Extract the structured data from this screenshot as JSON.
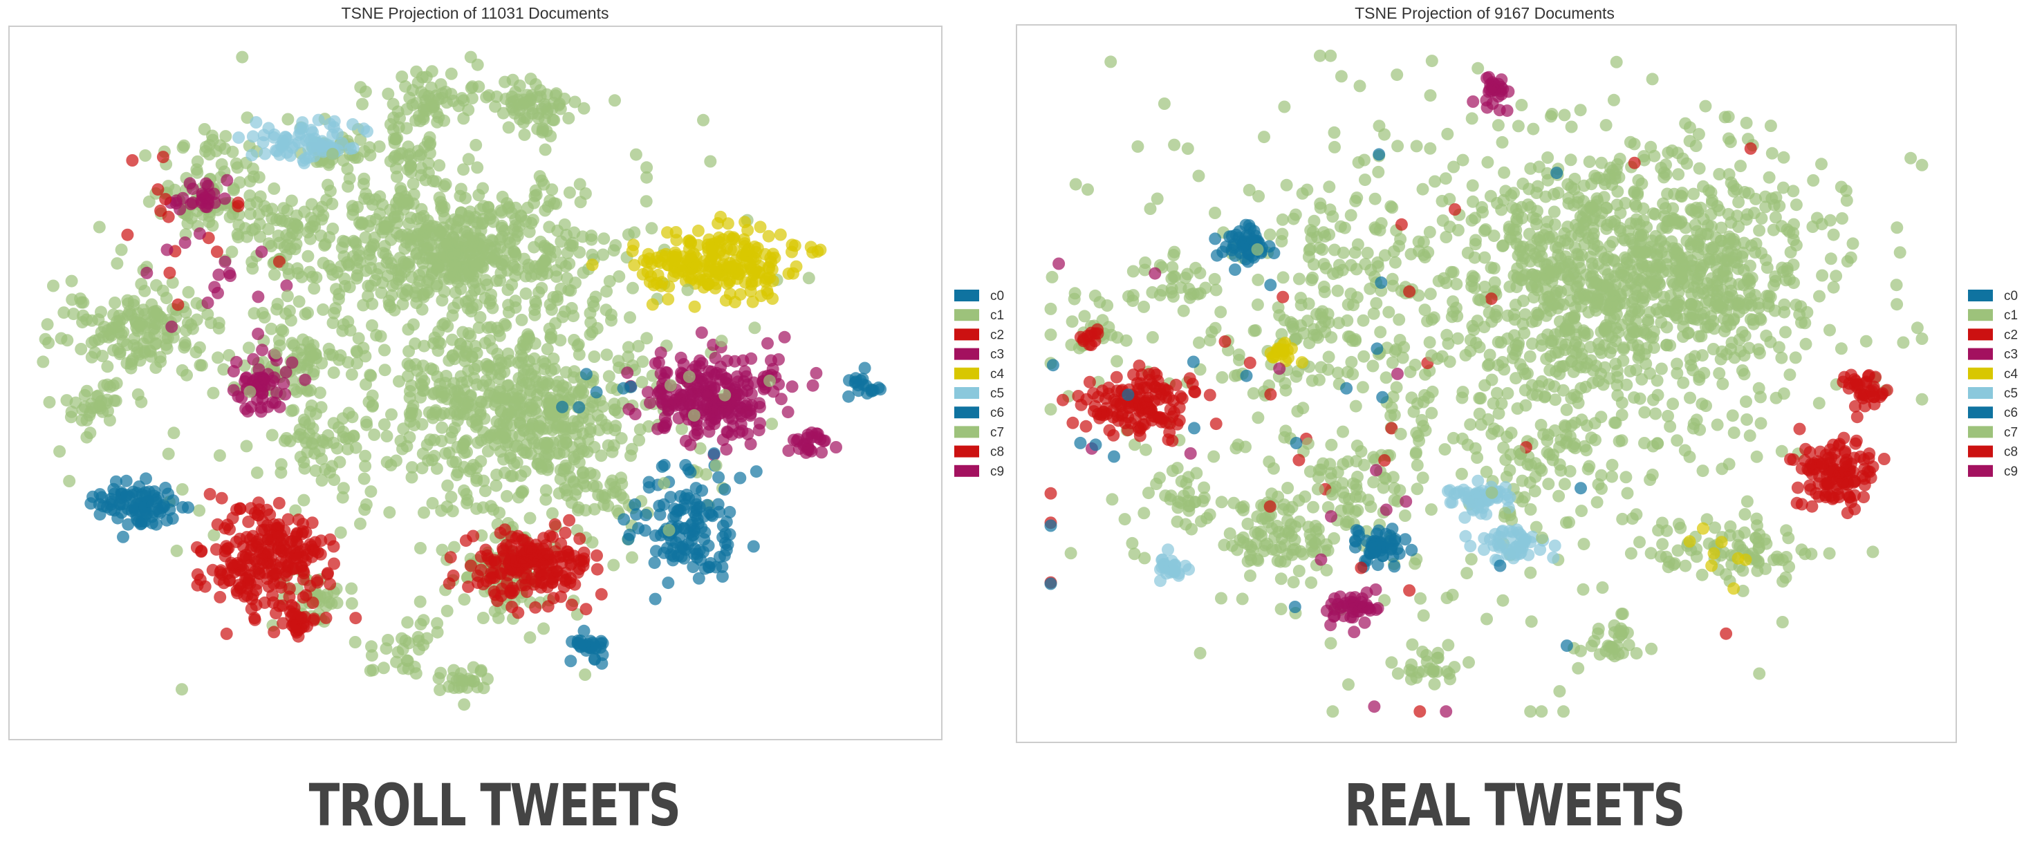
{
  "colors": {
    "c0": "#0f73a0",
    "c1": "#9dc27b",
    "c2": "#cc1111",
    "c3": "#a3115f",
    "c4": "#d8c700",
    "c5": "#8ac8dc",
    "c6": "#0f73a0",
    "c7": "#9dc27b",
    "c8": "#cc1111",
    "c9": "#a3115f",
    "frame": "#cccccc",
    "caption": "#444444"
  },
  "captions": {
    "left": "TROLL TWEETS",
    "right": "REAL TWEETS"
  },
  "chart_data": [
    {
      "type": "scatter",
      "title": "TSNE Projection of 11031 Documents",
      "xlabel": "",
      "ylabel": "",
      "grid": false,
      "axes_visible": false,
      "legend": {
        "placement": "outside-right",
        "entries": [
          "c0",
          "c1",
          "c2",
          "c3",
          "c4",
          "c5",
          "c6",
          "c7",
          "c8",
          "c9"
        ]
      },
      "clusters": [
        {
          "series": "c1",
          "x": 0.47,
          "y": 0.7,
          "sx": 0.085,
          "sy": 0.05,
          "n": 520
        },
        {
          "series": "c1",
          "x": 0.55,
          "y": 0.46,
          "sx": 0.065,
          "sy": 0.06,
          "n": 420
        },
        {
          "series": "c1",
          "x": 0.45,
          "y": 0.55,
          "sx": 0.16,
          "sy": 0.16,
          "n": 380
        },
        {
          "series": "c1",
          "x": 0.12,
          "y": 0.58,
          "sx": 0.04,
          "sy": 0.03,
          "n": 150
        },
        {
          "series": "c1",
          "x": 0.44,
          "y": 0.92,
          "sx": 0.025,
          "sy": 0.02,
          "n": 60
        },
        {
          "series": "c1",
          "x": 0.56,
          "y": 0.91,
          "sx": 0.03,
          "sy": 0.02,
          "n": 70
        },
        {
          "series": "c1",
          "x": 0.19,
          "y": 0.76,
          "sx": 0.025,
          "sy": 0.02,
          "n": 45
        },
        {
          "series": "c1",
          "x": 0.28,
          "y": 0.73,
          "sx": 0.025,
          "sy": 0.02,
          "n": 45
        },
        {
          "series": "c1",
          "x": 0.34,
          "y": 0.84,
          "sx": 0.02,
          "sy": 0.02,
          "n": 35
        },
        {
          "series": "c1",
          "x": 0.42,
          "y": 0.84,
          "sx": 0.02,
          "sy": 0.02,
          "n": 35
        },
        {
          "series": "c1",
          "x": 0.3,
          "y": 0.53,
          "sx": 0.025,
          "sy": 0.025,
          "n": 45
        },
        {
          "series": "c1",
          "x": 0.07,
          "y": 0.47,
          "sx": 0.02,
          "sy": 0.02,
          "n": 35
        },
        {
          "series": "c1",
          "x": 0.33,
          "y": 0.4,
          "sx": 0.03,
          "sy": 0.025,
          "n": 45
        },
        {
          "series": "c1",
          "x": 0.53,
          "y": 0.24,
          "sx": 0.03,
          "sy": 0.025,
          "n": 60
        },
        {
          "series": "c1",
          "x": 0.32,
          "y": 0.18,
          "sx": 0.02,
          "sy": 0.02,
          "n": 35
        },
        {
          "series": "c1",
          "x": 0.48,
          "y": 0.06,
          "sx": 0.015,
          "sy": 0.015,
          "n": 25
        },
        {
          "series": "c1",
          "x": 0.42,
          "y": 0.1,
          "sx": 0.02,
          "sy": 0.02,
          "n": 30
        },
        {
          "series": "c1",
          "x": 0.2,
          "y": 0.82,
          "sx": 0.03,
          "sy": 0.03,
          "n": 40
        },
        {
          "series": "c1",
          "x": 0.63,
          "y": 0.35,
          "sx": 0.03,
          "sy": 0.03,
          "n": 40
        },
        {
          "series": "c1",
          "x": 0.55,
          "y": 0.2,
          "sx": 0.03,
          "sy": 0.03,
          "n": 40
        },
        {
          "series": "c4",
          "x": 0.77,
          "y": 0.68,
          "sx": 0.045,
          "sy": 0.025,
          "n": 220
        },
        {
          "series": "c3",
          "x": 0.77,
          "y": 0.48,
          "sx": 0.04,
          "sy": 0.035,
          "n": 240
        },
        {
          "series": "c3",
          "x": 0.26,
          "y": 0.5,
          "sx": 0.02,
          "sy": 0.02,
          "n": 60
        },
        {
          "series": "c3",
          "x": 0.19,
          "y": 0.78,
          "sx": 0.015,
          "sy": 0.015,
          "n": 25
        },
        {
          "series": "c3",
          "x": 0.88,
          "y": 0.41,
          "sx": 0.012,
          "sy": 0.01,
          "n": 25
        },
        {
          "series": "c0",
          "x": 0.74,
          "y": 0.29,
          "sx": 0.03,
          "sy": 0.04,
          "n": 130
        },
        {
          "series": "c0",
          "x": 0.12,
          "y": 0.32,
          "sx": 0.025,
          "sy": 0.02,
          "n": 90
        },
        {
          "series": "c0",
          "x": 0.63,
          "y": 0.11,
          "sx": 0.012,
          "sy": 0.01,
          "n": 30
        },
        {
          "series": "c0",
          "x": 0.93,
          "y": 0.5,
          "sx": 0.01,
          "sy": 0.01,
          "n": 18
        },
        {
          "series": "c2",
          "x": 0.27,
          "y": 0.24,
          "sx": 0.035,
          "sy": 0.045,
          "n": 230
        },
        {
          "series": "c2",
          "x": 0.56,
          "y": 0.23,
          "sx": 0.035,
          "sy": 0.025,
          "n": 190
        },
        {
          "series": "c2",
          "x": 0.3,
          "y": 0.15,
          "sx": 0.012,
          "sy": 0.01,
          "n": 25
        },
        {
          "series": "c5",
          "x": 0.31,
          "y": 0.86,
          "sx": 0.03,
          "sy": 0.015,
          "n": 75
        },
        {
          "series": "c8",
          "x": 0.16,
          "y": 0.73,
          "sx": 0.05,
          "sy": 0.06,
          "n": 15
        },
        {
          "series": "c9",
          "x": 0.2,
          "y": 0.67,
          "sx": 0.04,
          "sy": 0.04,
          "n": 15
        },
        {
          "series": "c6",
          "x": 0.65,
          "y": 0.52,
          "sx": 0.04,
          "sy": 0.04,
          "n": 6
        },
        {
          "series": "c7",
          "x": 0.5,
          "y": 0.5,
          "sx": 0.15,
          "sy": 0.15,
          "n": 80
        }
      ]
    },
    {
      "type": "scatter",
      "title": "TSNE Projection of 9167 Documents",
      "xlabel": "",
      "ylabel": "",
      "grid": false,
      "axes_visible": false,
      "legend": {
        "placement": "outside-right",
        "entries": [
          "c0",
          "c1",
          "c2",
          "c3",
          "c4",
          "c5",
          "c6",
          "c7",
          "c8",
          "c9"
        ]
      },
      "clusters": [
        {
          "series": "c1",
          "x": 0.67,
          "y": 0.66,
          "sx": 0.1,
          "sy": 0.09,
          "n": 1000
        },
        {
          "series": "c1",
          "x": 0.45,
          "y": 0.52,
          "sx": 0.2,
          "sy": 0.2,
          "n": 520
        },
        {
          "series": "c1",
          "x": 0.27,
          "y": 0.27,
          "sx": 0.03,
          "sy": 0.035,
          "n": 95
        },
        {
          "series": "c1",
          "x": 0.77,
          "y": 0.25,
          "sx": 0.04,
          "sy": 0.03,
          "n": 80
        },
        {
          "series": "c1",
          "x": 0.33,
          "y": 0.7,
          "sx": 0.03,
          "sy": 0.03,
          "n": 40
        },
        {
          "series": "c1",
          "x": 0.3,
          "y": 0.58,
          "sx": 0.02,
          "sy": 0.02,
          "n": 30
        },
        {
          "series": "c1",
          "x": 0.15,
          "y": 0.65,
          "sx": 0.02,
          "sy": 0.02,
          "n": 30
        },
        {
          "series": "c1",
          "x": 0.06,
          "y": 0.58,
          "sx": 0.02,
          "sy": 0.02,
          "n": 25
        },
        {
          "series": "c1",
          "x": 0.64,
          "y": 0.12,
          "sx": 0.02,
          "sy": 0.015,
          "n": 30
        },
        {
          "series": "c1",
          "x": 0.44,
          "y": 0.08,
          "sx": 0.02,
          "sy": 0.015,
          "n": 25
        },
        {
          "series": "c1",
          "x": 0.35,
          "y": 0.36,
          "sx": 0.03,
          "sy": 0.03,
          "n": 40
        },
        {
          "series": "c1",
          "x": 0.58,
          "y": 0.4,
          "sx": 0.03,
          "sy": 0.03,
          "n": 40
        },
        {
          "series": "c1",
          "x": 0.16,
          "y": 0.33,
          "sx": 0.02,
          "sy": 0.02,
          "n": 30
        },
        {
          "series": "c3",
          "x": 0.51,
          "y": 0.93,
          "sx": 0.008,
          "sy": 0.012,
          "n": 25
        },
        {
          "series": "c3",
          "x": 0.35,
          "y": 0.17,
          "sx": 0.015,
          "sy": 0.012,
          "n": 40
        },
        {
          "series": "c0",
          "x": 0.23,
          "y": 0.71,
          "sx": 0.015,
          "sy": 0.015,
          "n": 55
        },
        {
          "series": "c0",
          "x": 0.38,
          "y": 0.26,
          "sx": 0.015,
          "sy": 0.012,
          "n": 55
        },
        {
          "series": "c2",
          "x": 0.11,
          "y": 0.47,
          "sx": 0.03,
          "sy": 0.025,
          "n": 140
        },
        {
          "series": "c2",
          "x": 0.89,
          "y": 0.37,
          "sx": 0.025,
          "sy": 0.025,
          "n": 120
        },
        {
          "series": "c2",
          "x": 0.92,
          "y": 0.49,
          "sx": 0.012,
          "sy": 0.015,
          "n": 35
        },
        {
          "series": "c2",
          "x": 0.06,
          "y": 0.57,
          "sx": 0.008,
          "sy": 0.008,
          "n": 12
        },
        {
          "series": "c5",
          "x": 0.49,
          "y": 0.33,
          "sx": 0.018,
          "sy": 0.01,
          "n": 60
        },
        {
          "series": "c5",
          "x": 0.53,
          "y": 0.26,
          "sx": 0.02,
          "sy": 0.012,
          "n": 50
        },
        {
          "series": "c5",
          "x": 0.15,
          "y": 0.23,
          "sx": 0.01,
          "sy": 0.01,
          "n": 25
        },
        {
          "series": "c4",
          "x": 0.27,
          "y": 0.55,
          "sx": 0.01,
          "sy": 0.01,
          "n": 18
        },
        {
          "series": "c4",
          "x": 0.75,
          "y": 0.25,
          "sx": 0.03,
          "sy": 0.03,
          "n": 8
        },
        {
          "series": "c8",
          "x": 0.36,
          "y": 0.45,
          "sx": 0.2,
          "sy": 0.2,
          "n": 25
        },
        {
          "series": "c9",
          "x": 0.34,
          "y": 0.35,
          "sx": 0.15,
          "sy": 0.15,
          "n": 14
        },
        {
          "series": "c6",
          "x": 0.36,
          "y": 0.45,
          "sx": 0.18,
          "sy": 0.18,
          "n": 22
        },
        {
          "series": "c7",
          "x": 0.5,
          "y": 0.5,
          "sx": 0.15,
          "sy": 0.15,
          "n": 80
        }
      ]
    }
  ]
}
